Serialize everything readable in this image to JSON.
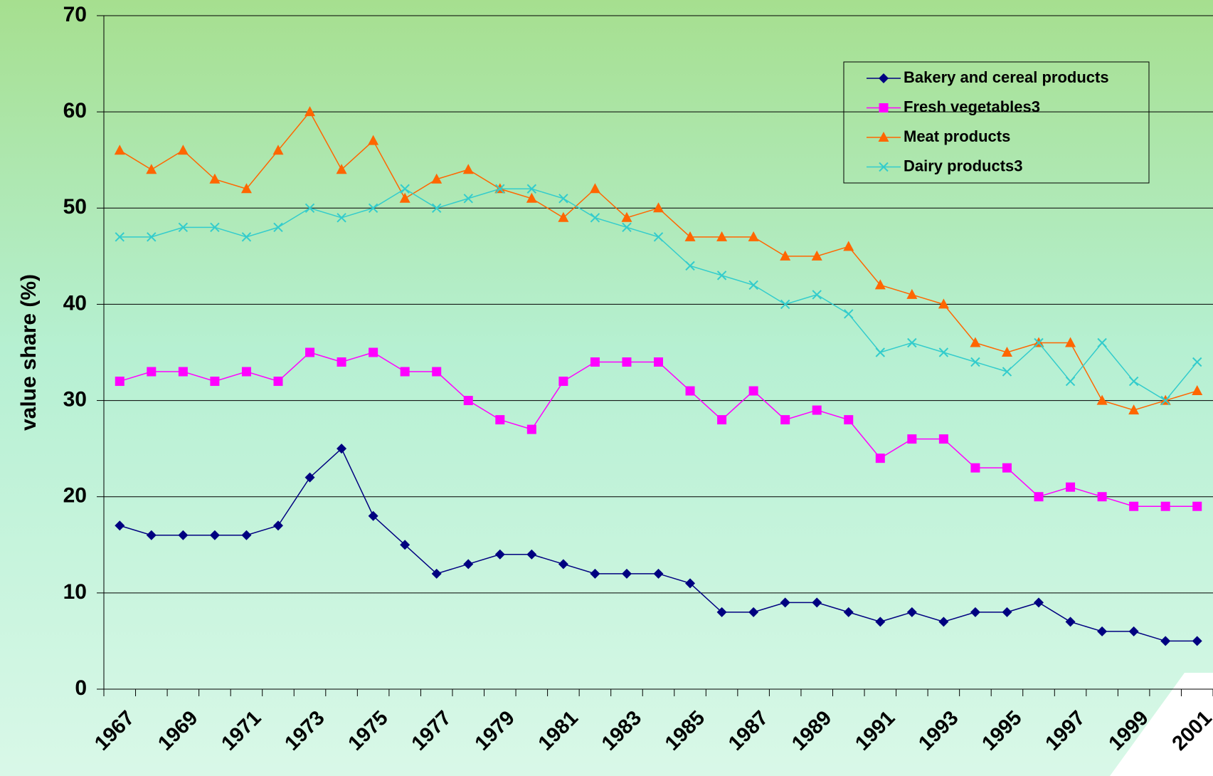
{
  "chart_data": {
    "type": "line",
    "y_label": "value share (%)",
    "categories": [
      "1967",
      null,
      "1969",
      null,
      "1971",
      null,
      "1973",
      null,
      "1975",
      null,
      "1977",
      null,
      "1979",
      null,
      "1981",
      null,
      "1983",
      null,
      "1985",
      null,
      "1987",
      null,
      "1989",
      null,
      "1991",
      null,
      "1993",
      null,
      "1995",
      null,
      "1997",
      null,
      "1999",
      null,
      "2001"
    ],
    "series": [
      {
        "name": "Bakery and cereal products",
        "color": "#000080",
        "marker": "diamond",
        "values": [
          17,
          16,
          16,
          16,
          16,
          17,
          22,
          25,
          18,
          15,
          12,
          13,
          14,
          14,
          13,
          12,
          12,
          12,
          11,
          8,
          8,
          9,
          9,
          8,
          7,
          8,
          7,
          8,
          8,
          9,
          7,
          6,
          6,
          5,
          5
        ]
      },
      {
        "name": "Fresh vegetables3",
        "color": "#ff00ff",
        "marker": "square",
        "values": [
          32,
          33,
          33,
          32,
          33,
          32,
          35,
          34,
          35,
          33,
          33,
          30,
          28,
          27,
          32,
          34,
          34,
          34,
          31,
          28,
          31,
          28,
          29,
          28,
          24,
          26,
          26,
          23,
          23,
          20,
          21,
          20,
          19,
          19,
          19
        ]
      },
      {
        "name": "Meat products",
        "color": "#ff6600",
        "marker": "triangle",
        "values": [
          56,
          54,
          56,
          53,
          52,
          56,
          60,
          54,
          57,
          51,
          53,
          54,
          52,
          51,
          49,
          52,
          49,
          50,
          47,
          47,
          47,
          45,
          45,
          46,
          42,
          41,
          40,
          36,
          35,
          36,
          36,
          30,
          29,
          30,
          31
        ]
      },
      {
        "name": "Dairy products3",
        "color": "#33cccc",
        "marker": "x",
        "values": [
          47,
          47,
          48,
          48,
          47,
          48,
          50,
          49,
          50,
          52,
          50,
          51,
          52,
          52,
          51,
          49,
          48,
          47,
          44,
          43,
          42,
          40,
          41,
          39,
          35,
          36,
          35,
          34,
          33,
          36,
          32,
          36,
          32,
          30,
          34
        ]
      }
    ],
    "ylim": [
      0,
      70
    ],
    "yticks": [
      0,
      10,
      20,
      30,
      40,
      50,
      60,
      70
    ],
    "grid": true,
    "legend": "upper right"
  }
}
